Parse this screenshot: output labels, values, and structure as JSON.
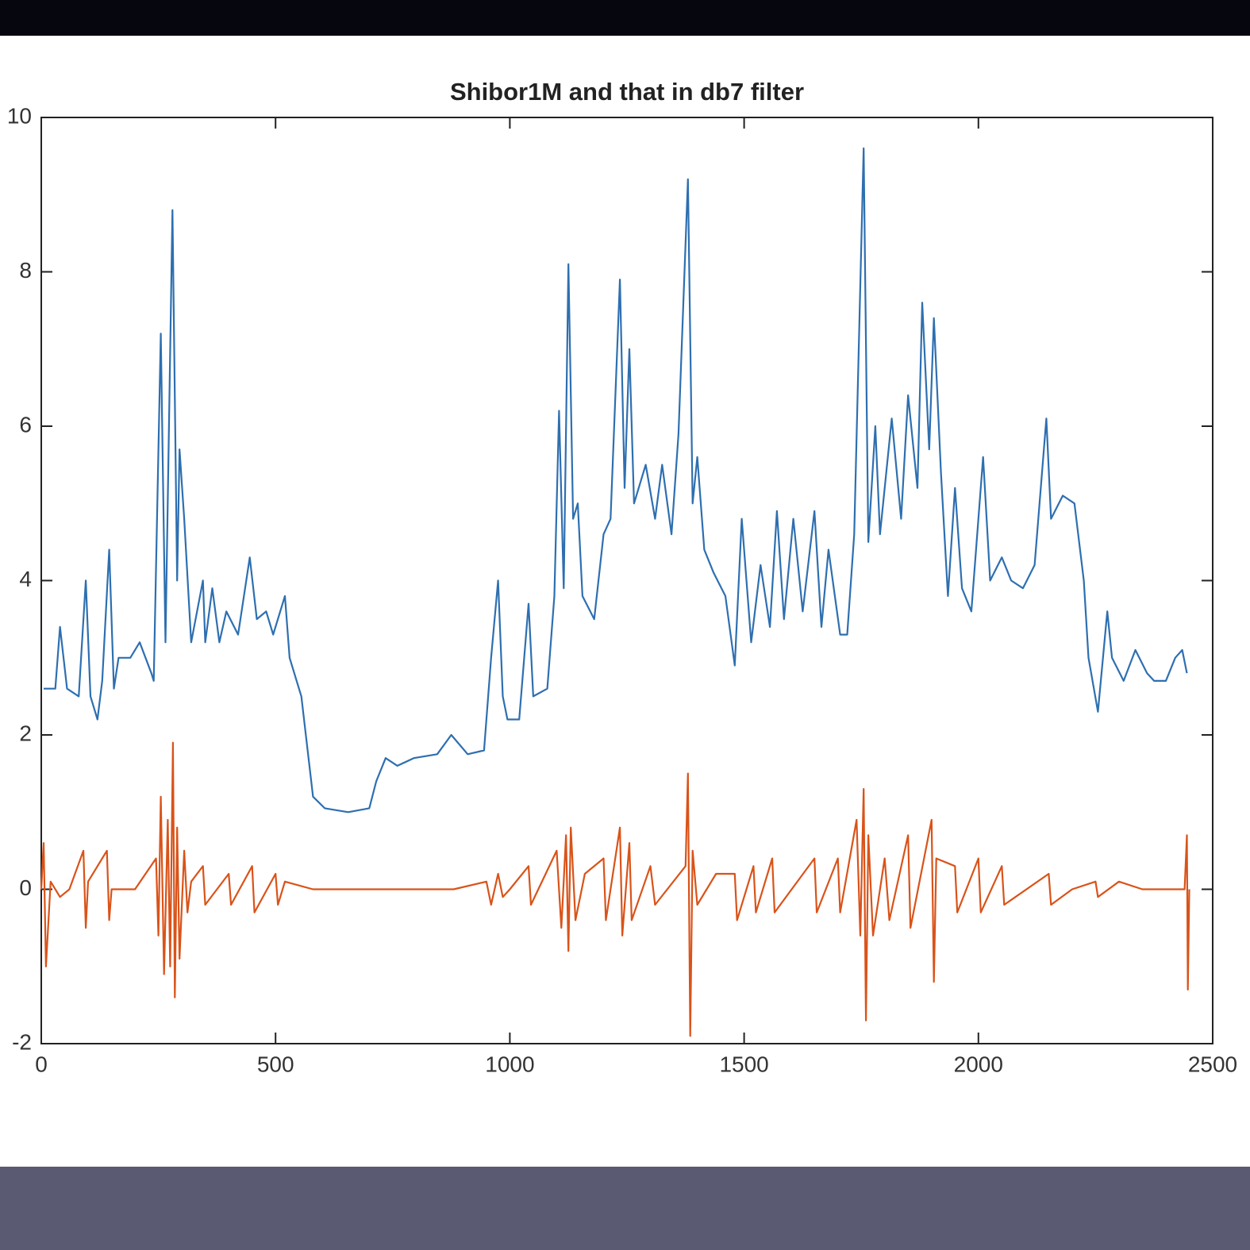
{
  "chart_data": {
    "type": "line",
    "title": "Shibor1M and that in db7 filter",
    "xlim": [
      0,
      2500
    ],
    "xticks": [
      0,
      500,
      1000,
      1500,
      2000,
      2500
    ],
    "ylim": [
      -2,
      10
    ],
    "yticks": [
      -2,
      0,
      2,
      4,
      6,
      8,
      10
    ],
    "grid": false,
    "series": [
      {
        "color": "#2e6fb0",
        "x": [
          5,
          30,
          40,
          55,
          80,
          95,
          105,
          120,
          130,
          145,
          155,
          165,
          190,
          210,
          235,
          240,
          255,
          265,
          280,
          290,
          295,
          305,
          320,
          345,
          350,
          365,
          380,
          395,
          420,
          445,
          460,
          480,
          495,
          520,
          530,
          555,
          580,
          605,
          655,
          700,
          715,
          735,
          760,
          795,
          845,
          875,
          910,
          945,
          960,
          975,
          985,
          995,
          1020,
          1040,
          1050,
          1080,
          1095,
          1105,
          1115,
          1125,
          1135,
          1145,
          1155,
          1180,
          1200,
          1215,
          1235,
          1245,
          1255,
          1265,
          1290,
          1310,
          1325,
          1345,
          1360,
          1380,
          1390,
          1400,
          1415,
          1435,
          1460,
          1480,
          1495,
          1515,
          1535,
          1555,
          1570,
          1585,
          1605,
          1625,
          1650,
          1665,
          1680,
          1705,
          1720,
          1735,
          1755,
          1765,
          1780,
          1790,
          1815,
          1835,
          1850,
          1870,
          1880,
          1895,
          1905,
          1920,
          1935,
          1950,
          1965,
          1985,
          2010,
          2025,
          2050,
          2070,
          2095,
          2120,
          2145,
          2155,
          2180,
          2205,
          2225,
          2235,
          2255,
          2275,
          2285,
          2310,
          2335,
          2360,
          2375,
          2400,
          2420,
          2435,
          2445
        ],
        "values": [
          2.6,
          2.6,
          3.4,
          2.6,
          2.5,
          4.0,
          2.5,
          2.2,
          2.7,
          4.4,
          2.6,
          3.0,
          3.0,
          3.2,
          2.8,
          2.7,
          7.2,
          3.2,
          8.8,
          4.0,
          5.7,
          4.8,
          3.2,
          4.0,
          3.2,
          3.9,
          3.2,
          3.6,
          3.3,
          4.3,
          3.5,
          3.6,
          3.3,
          3.8,
          3.0,
          2.5,
          1.2,
          1.05,
          1.0,
          1.05,
          1.4,
          1.7,
          1.6,
          1.7,
          1.75,
          2.0,
          1.75,
          1.8,
          3.0,
          4.0,
          2.5,
          2.2,
          2.2,
          3.7,
          2.5,
          2.6,
          3.8,
          6.2,
          3.9,
          8.1,
          4.8,
          5.0,
          3.8,
          3.5,
          4.6,
          4.8,
          7.9,
          5.2,
          7.0,
          5.0,
          5.5,
          4.8,
          5.5,
          4.6,
          5.9,
          9.2,
          5.0,
          5.6,
          4.4,
          4.1,
          3.8,
          2.9,
          4.8,
          3.2,
          4.2,
          3.4,
          4.9,
          3.5,
          4.8,
          3.6,
          4.9,
          3.4,
          4.4,
          3.3,
          3.3,
          4.6,
          9.6,
          4.5,
          6.0,
          4.6,
          6.1,
          4.8,
          6.4,
          5.2,
          7.6,
          5.7,
          7.4,
          5.4,
          3.8,
          5.2,
          3.9,
          3.6,
          5.6,
          4.0,
          4.3,
          4.0,
          3.9,
          4.2,
          6.1,
          4.8,
          5.1,
          5.0,
          4.0,
          3.0,
          2.3,
          3.6,
          3.0,
          2.7,
          3.1,
          2.8,
          2.7,
          2.7,
          3.0,
          3.1,
          2.8
        ]
      },
      {
        "color": "#d95319",
        "x": [
          0,
          5,
          10,
          20,
          40,
          60,
          90,
          95,
          100,
          140,
          145,
          150,
          200,
          245,
          250,
          255,
          262,
          270,
          275,
          281,
          285,
          290,
          295,
          305,
          312,
          320,
          345,
          350,
          400,
          405,
          450,
          455,
          500,
          505,
          520,
          580,
          700,
          880,
          950,
          960,
          975,
          985,
          1000,
          1040,
          1045,
          1100,
          1110,
          1120,
          1125,
          1130,
          1140,
          1160,
          1200,
          1205,
          1235,
          1240,
          1255,
          1260,
          1300,
          1310,
          1375,
          1380,
          1385,
          1390,
          1400,
          1440,
          1480,
          1485,
          1520,
          1525,
          1560,
          1565,
          1650,
          1655,
          1700,
          1705,
          1740,
          1748,
          1755,
          1760,
          1765,
          1775,
          1800,
          1810,
          1850,
          1855,
          1900,
          1905,
          1910,
          1950,
          1955,
          2000,
          2005,
          2050,
          2055,
          2150,
          2155,
          2200,
          2250,
          2255,
          2300,
          2350,
          2440,
          2445,
          2447,
          2450
        ],
        "values": [
          0,
          0.6,
          -1.0,
          0.1,
          -0.1,
          0,
          0.5,
          -0.5,
          0.1,
          0.5,
          -0.4,
          0,
          0,
          0.4,
          -0.6,
          1.2,
          -1.1,
          0.9,
          -1.0,
          1.9,
          -1.4,
          0.8,
          -0.9,
          0.5,
          -0.3,
          0.1,
          0.3,
          -0.2,
          0.2,
          -0.2,
          0.3,
          -0.3,
          0.2,
          -0.2,
          0.1,
          0,
          0,
          0,
          0.1,
          -0.2,
          0.2,
          -0.1,
          0,
          0.3,
          -0.2,
          0.5,
          -0.5,
          0.7,
          -0.8,
          0.8,
          -0.4,
          0.2,
          0.4,
          -0.4,
          0.8,
          -0.6,
          0.6,
          -0.4,
          0.3,
          -0.2,
          0.3,
          1.5,
          -1.9,
          0.5,
          -0.2,
          0.2,
          0.2,
          -0.4,
          0.3,
          -0.3,
          0.4,
          -0.3,
          0.4,
          -0.3,
          0.4,
          -0.3,
          0.9,
          -0.6,
          1.3,
          -1.7,
          0.7,
          -0.6,
          0.4,
          -0.4,
          0.7,
          -0.5,
          0.9,
          -1.2,
          0.4,
          0.3,
          -0.3,
          0.4,
          -0.3,
          0.3,
          -0.2,
          0.2,
          -0.2,
          0,
          0.1,
          -0.1,
          0.1,
          0,
          0,
          0.7,
          -1.3,
          0
        ]
      }
    ]
  }
}
